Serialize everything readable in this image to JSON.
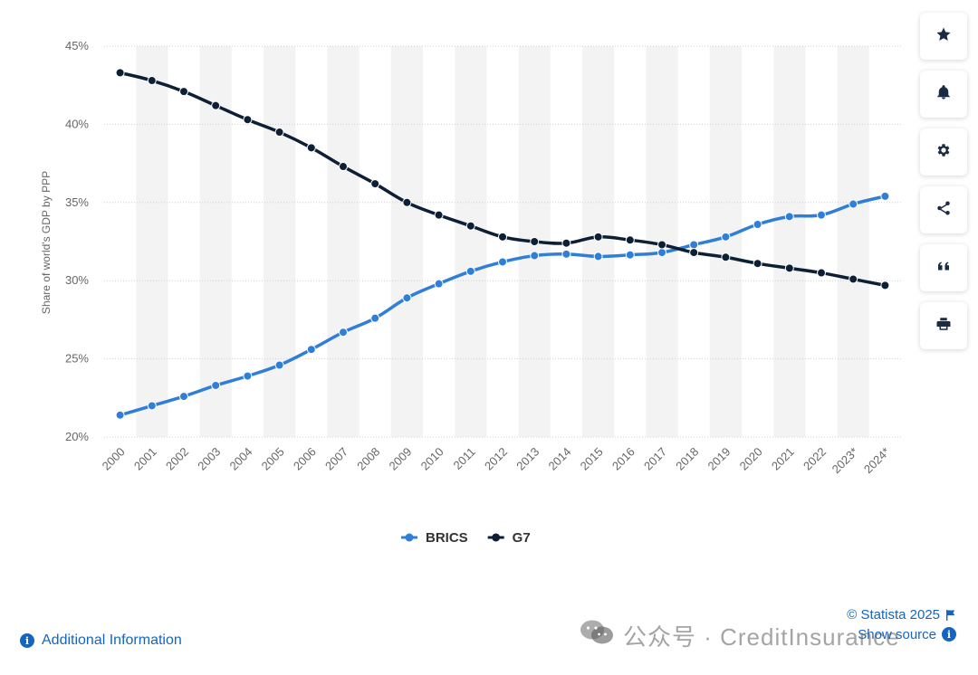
{
  "chart_data": {
    "type": "line",
    "ylabel": "Share of world's GDP by PPP",
    "xlabel": "",
    "x": [
      "2000",
      "2001",
      "2002",
      "2003",
      "2004",
      "2005",
      "2006",
      "2007",
      "2008",
      "2009",
      "2010",
      "2011",
      "2012",
      "2013",
      "2014",
      "2015",
      "2016",
      "2017",
      "2018",
      "2019",
      "2020",
      "2021",
      "2022",
      "2023*",
      "2024*"
    ],
    "ylim": [
      20,
      45
    ],
    "yticks": [
      20,
      25,
      30,
      35,
      40,
      45
    ],
    "ytick_labels": [
      "20%",
      "25%",
      "30%",
      "35%",
      "40%",
      "45%"
    ],
    "grid": true,
    "legend_position": "bottom",
    "series": [
      {
        "name": "BRICS",
        "color": "#2f7ed8",
        "values": [
          21.4,
          22.0,
          22.6,
          23.3,
          23.9,
          24.6,
          25.6,
          26.7,
          27.6,
          28.9,
          29.8,
          30.6,
          31.2,
          31.6,
          31.7,
          31.55,
          31.65,
          31.8,
          32.3,
          32.8,
          33.6,
          34.1,
          34.2,
          34.9,
          35.4
        ]
      },
      {
        "name": "G7",
        "color": "#0d1f35",
        "values": [
          43.3,
          42.8,
          42.1,
          41.2,
          40.3,
          39.5,
          38.5,
          37.3,
          36.2,
          35.0,
          34.2,
          33.5,
          32.8,
          32.5,
          32.4,
          32.8,
          32.6,
          32.3,
          31.8,
          31.5,
          31.1,
          30.8,
          30.5,
          30.1,
          29.7
        ]
      }
    ]
  },
  "sidebar": {
    "buttons": [
      {
        "icon": "star-icon"
      },
      {
        "icon": "bell-icon"
      },
      {
        "icon": "gear-icon"
      },
      {
        "icon": "share-icon"
      },
      {
        "icon": "quote-icon"
      },
      {
        "icon": "print-icon"
      }
    ]
  },
  "footer": {
    "additional_info": "Additional Information",
    "copyright": "© Statista 2025",
    "show_source": "Show source"
  },
  "watermark": {
    "text": "公众号 · CreditInsurance"
  },
  "colors": {
    "link": "#1565c0",
    "band": "#f3f3f3",
    "grid": "#d0d0d0"
  }
}
